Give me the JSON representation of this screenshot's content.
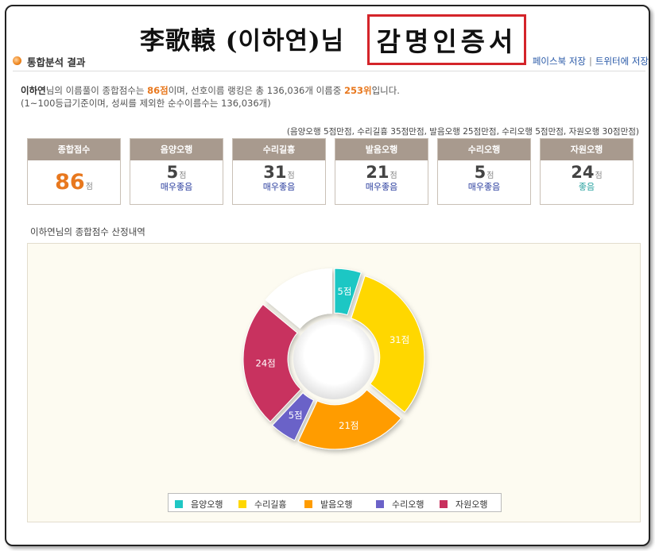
{
  "certificate": {
    "name_line": "李歌轅 (이하연)님",
    "boxed_text": "감명인증서"
  },
  "section": {
    "title": "통합분석 결과",
    "link_facebook": "페이스북 저장",
    "link_separator": "|",
    "link_twitter": "트위터에 저장"
  },
  "summary": {
    "name": "이하연",
    "text1": "님의 이름풀이 종합점수는 ",
    "score": "86점",
    "text2": "이며, 선호이름 랭킹은 총 136,036개 이름중 ",
    "rank": "253위",
    "text3": "입니다.",
    "line2": "(1~100등급기준이며, 성씨를 제외한 순수이름수는 136,036개)"
  },
  "max_points_note": "(음양오행 5점만점, 수리길흉 35점만점, 발음오행 25점만점, 수리오행 5점만점, 자원오행 30점만점)",
  "cards": [
    {
      "title": "종합점수",
      "score": "86",
      "unit": "점",
      "grade": ""
    },
    {
      "title": "음양오행",
      "score": "5",
      "unit": "점",
      "grade": "매우좋음"
    },
    {
      "title": "수리길흉",
      "score": "31",
      "unit": "점",
      "grade": "매우좋음"
    },
    {
      "title": "발음오행",
      "score": "21",
      "unit": "점",
      "grade": "매우좋음"
    },
    {
      "title": "수리오행",
      "score": "5",
      "unit": "점",
      "grade": "매우좋음"
    },
    {
      "title": "자원오행",
      "score": "24",
      "unit": "점",
      "grade": "좋음"
    }
  ],
  "chart_label": {
    "name": "이하연",
    "text": "님의 종합점수 산정내역"
  },
  "chart_data": {
    "type": "pie",
    "variant": "donut",
    "total": 100,
    "series": [
      {
        "name": "음양오행",
        "value": 5,
        "label": "5점",
        "color": "#1fc7c4"
      },
      {
        "name": "수리길흉",
        "value": 31,
        "label": "31점",
        "color": "#ffd700"
      },
      {
        "name": "발음오행",
        "value": 21,
        "label": "21점",
        "color": "#ff9c00"
      },
      {
        "name": "수리오행",
        "value": 5,
        "label": "5점",
        "color": "#6b62c8"
      },
      {
        "name": "자원오행",
        "value": 24,
        "label": "24점",
        "color": "#c8305e"
      }
    ],
    "remainder_color": "#ffffff",
    "legend_position": "bottom"
  }
}
